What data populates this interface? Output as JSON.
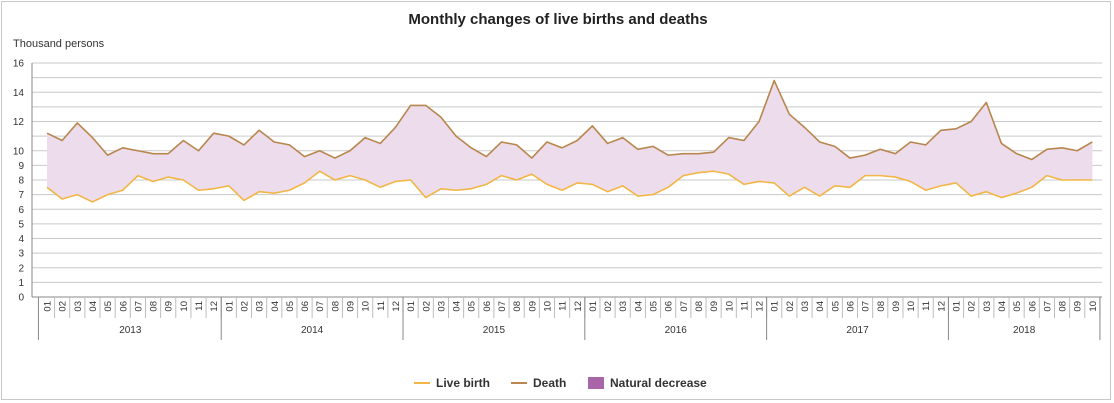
{
  "chart_data": {
    "type": "line",
    "title": "Monthly changes of live births and deaths",
    "ylabel": "Thousand persons",
    "xlabel": "",
    "ylim": [
      0,
      16
    ],
    "yticks": [
      0,
      1,
      2,
      3,
      4,
      5,
      6,
      7,
      8,
      9,
      10,
      11,
      12,
      13,
      14,
      15,
      16
    ],
    "ytick_labels": [
      "0",
      "1",
      "2",
      "3",
      "4",
      "5",
      "6",
      "7",
      "8",
      "9",
      "10",
      "12",
      "14",
      "16"
    ],
    "ytick_label_values": [
      0,
      1,
      2,
      3,
      4,
      5,
      6,
      7,
      8,
      9,
      10,
      12,
      14,
      16
    ],
    "years": [
      "2013",
      "2014",
      "2015",
      "2016",
      "2017",
      "2018"
    ],
    "year_month_counts": [
      12,
      12,
      12,
      12,
      12,
      10
    ],
    "month_labels": [
      "01",
      "02",
      "03",
      "04",
      "05",
      "06",
      "07",
      "08",
      "09",
      "10",
      "11",
      "12"
    ],
    "series": [
      {
        "name": "Live birth",
        "color": "#f2b646",
        "values": [
          7.5,
          6.7,
          7.0,
          6.5,
          7.0,
          7.3,
          8.3,
          7.9,
          8.2,
          8.0,
          7.3,
          7.4,
          7.6,
          6.6,
          7.2,
          7.1,
          7.3,
          7.8,
          8.6,
          8.0,
          8.3,
          8.0,
          7.5,
          7.9,
          8.0,
          6.8,
          7.4,
          7.3,
          7.4,
          7.7,
          8.3,
          8.0,
          8.4,
          7.7,
          7.3,
          7.8,
          7.7,
          7.2,
          7.6,
          6.9,
          7.0,
          7.5,
          8.3,
          8.5,
          8.6,
          8.4,
          7.7,
          7.9,
          7.8,
          6.9,
          7.5,
          6.9,
          7.6,
          7.5,
          8.3,
          8.3,
          8.2,
          7.9,
          7.3,
          7.6,
          7.8,
          6.9,
          7.2,
          6.8,
          7.1,
          7.5,
          8.3,
          8.0,
          8.0,
          8.0
        ]
      },
      {
        "name": "Death",
        "color": "#b8864e",
        "values": [
          11.2,
          10.7,
          11.9,
          10.9,
          9.7,
          10.2,
          10.0,
          9.8,
          9.8,
          10.7,
          10.0,
          11.2,
          11.0,
          10.4,
          11.4,
          10.6,
          10.4,
          9.6,
          10.0,
          9.5,
          10.0,
          10.9,
          10.5,
          11.6,
          13.1,
          13.1,
          12.3,
          11.0,
          10.2,
          9.6,
          10.6,
          10.4,
          9.5,
          10.6,
          10.2,
          10.7,
          11.7,
          10.5,
          10.9,
          10.1,
          10.3,
          9.7,
          9.8,
          9.8,
          9.9,
          10.9,
          10.7,
          12.0,
          14.8,
          12.5,
          11.6,
          10.6,
          10.3,
          9.5,
          9.7,
          10.1,
          9.8,
          10.6,
          10.4,
          11.4,
          11.5,
          12.0,
          13.3,
          10.5,
          9.8,
          9.4,
          10.1,
          10.2,
          10.0,
          10.6
        ]
      }
    ],
    "area": {
      "name": "Natural decrease",
      "color": "#eddcec",
      "legend_color": "#a866a8"
    },
    "legend": [
      "Live birth",
      "Death",
      "Natural decrease"
    ],
    "legend_position": "bottom-center",
    "grid": true
  }
}
